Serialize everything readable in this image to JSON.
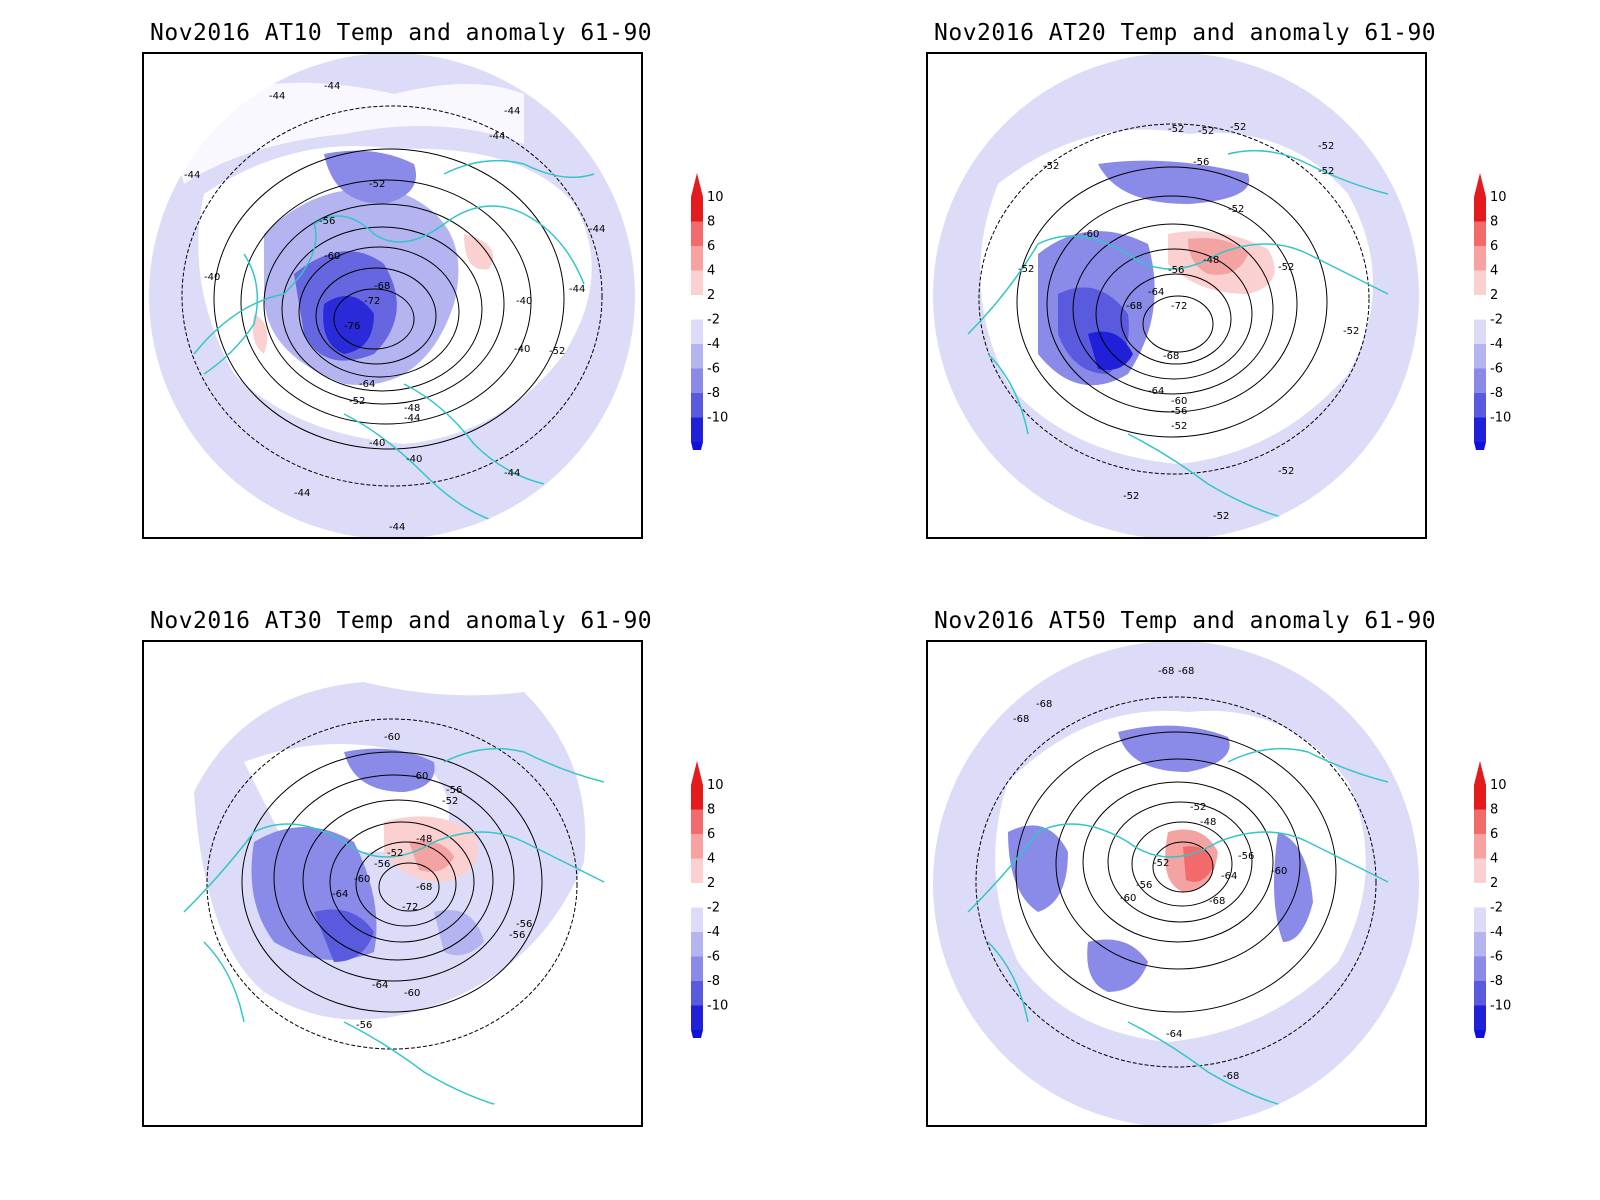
{
  "panels": [
    {
      "title": "Nov2016 AT10 Temp and anomaly 61-90",
      "contour_labels": [
        "-44",
        "-44",
        "-44",
        "-44",
        "-44",
        "-44",
        "-44",
        "-52",
        "-56",
        "-60",
        "-68",
        "-72",
        "-76",
        "-64",
        "-52",
        "-48",
        "-44",
        "-40",
        "-40",
        "-40",
        "-40",
        "-40",
        "-44",
        "-44",
        "-44",
        "-52"
      ],
      "anomaly_blobs": [
        {
          "sign": "neg",
          "level": -8
        },
        {
          "sign": "neg",
          "level": -4
        },
        {
          "sign": "pos",
          "level": 2
        }
      ]
    },
    {
      "title": "Nov2016 AT20 Temp and anomaly 61-90",
      "contour_labels": [
        "-52",
        "-52",
        "-52",
        "-52",
        "-52",
        "-52",
        "-56",
        "-52",
        "-60",
        "-52",
        "-56",
        "-48",
        "-64",
        "-68",
        "-72",
        "-68",
        "-64",
        "-60",
        "-56",
        "-52",
        "-52",
        "-52",
        "-52",
        "-52",
        "-52"
      ],
      "anomaly_blobs": [
        {
          "sign": "neg",
          "level": -8
        },
        {
          "sign": "pos",
          "level": 4
        }
      ]
    },
    {
      "title": "Nov2016 AT30 Temp and anomaly 61-90",
      "contour_labels": [
        "-60",
        "-60",
        "-56",
        "-52",
        "-48",
        "-52",
        "-56",
        "-60",
        "-64",
        "-68",
        "-72",
        "-56",
        "-56",
        "-64",
        "-60",
        "-56"
      ],
      "anomaly_blobs": [
        {
          "sign": "neg",
          "level": -6
        },
        {
          "sign": "pos",
          "level": 4
        }
      ]
    },
    {
      "title": "Nov2016 AT50 Temp and anomaly 61-90",
      "contour_labels": [
        "-68",
        "-68",
        "-68",
        "-68",
        "-52",
        "-48",
        "-56",
        "-52",
        "-56",
        "-60",
        "-64",
        "-60",
        "-68",
        "-64",
        "-68"
      ],
      "anomaly_blobs": [
        {
          "sign": "neg",
          "level": -6
        },
        {
          "sign": "pos",
          "level": 6
        }
      ]
    }
  ],
  "colorbar": {
    "labels": [
      "10",
      "8",
      "6",
      "4",
      "2",
      "-2",
      "-4",
      "-6",
      "-8",
      "-10"
    ],
    "colors": [
      "#e41a1c",
      "#f26a6a",
      "#f7a1a1",
      "#fbd0d0",
      "#ffffff",
      "#dcdcf8",
      "#b4b4f0",
      "#8a8ae8",
      "#5a5adf",
      "#2020d8"
    ],
    "top_arrow_color": "#e41a1c",
    "bottom_arrow_color": "#1010dd"
  },
  "colors": {
    "coast": "#33c6c6",
    "contour": "#000000",
    "light_neg": "#dcdcf8",
    "mid_neg": "#b4b4f0",
    "strong_neg": "#6666e0",
    "deep_neg": "#2a2ad8",
    "light_pos": "#fbd0d0",
    "mid_pos": "#f4a3a3"
  }
}
